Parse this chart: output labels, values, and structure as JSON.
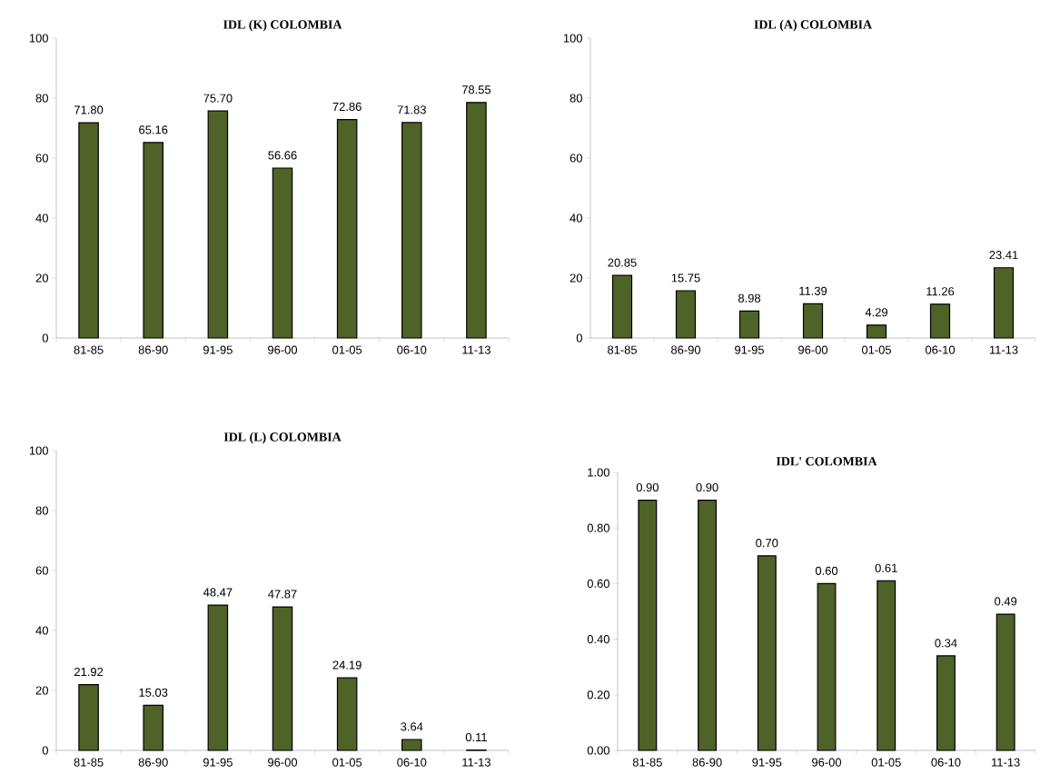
{
  "chart_data": [
    {
      "type": "bar",
      "title": "IDL (K) COLOMBIA",
      "categories": [
        "81-85",
        "86-90",
        "91-95",
        "96-00",
        "01-05",
        "06-10",
        "11-13"
      ],
      "values": [
        71.8,
        65.16,
        75.7,
        56.66,
        72.86,
        71.83,
        78.55
      ],
      "value_labels": [
        "71.80",
        "65.16",
        "75.70",
        "56.66",
        "72.86",
        "71.83",
        "78.55"
      ],
      "color": "#4f6228",
      "ylim": [
        0,
        100
      ],
      "yticks": [
        0,
        20,
        40,
        60,
        80,
        100
      ]
    },
    {
      "type": "bar",
      "title": "IDL (A) COLOMBIA",
      "categories": [
        "81-85",
        "86-90",
        "91-95",
        "96-00",
        "01-05",
        "06-10",
        "11-13"
      ],
      "values": [
        20.85,
        15.75,
        8.98,
        11.39,
        4.29,
        11.26,
        23.41
      ],
      "value_labels": [
        "20.85",
        "15.75",
        "8.98",
        "11.39",
        "4.29",
        "11.26",
        "23.41"
      ],
      "color": "#4f6228",
      "ylim": [
        0,
        100
      ],
      "yticks": [
        0,
        20,
        40,
        60,
        80,
        100
      ]
    },
    {
      "type": "bar",
      "title": "IDL (L) COLOMBIA",
      "categories": [
        "81-85",
        "86-90",
        "91-95",
        "96-00",
        "01-05",
        "06-10",
        "11-13"
      ],
      "values": [
        21.92,
        15.03,
        48.47,
        47.87,
        24.19,
        3.64,
        0.11
      ],
      "value_labels": [
        "21.92",
        "15.03",
        "48.47",
        "47.87",
        "24.19",
        "3.64",
        "0.11"
      ],
      "color": "#4f6228",
      "ylim": [
        0,
        100
      ],
      "yticks": [
        0,
        20,
        40,
        60,
        80,
        100
      ]
    },
    {
      "type": "bar",
      "title": "IDL' COLOMBIA",
      "categories": [
        "81-85",
        "86-90",
        "91-95",
        "96-00",
        "01-05",
        "06-10",
        "11-13"
      ],
      "values": [
        0.9,
        0.9,
        0.7,
        0.6,
        0.61,
        0.34,
        0.49
      ],
      "value_labels": [
        "0.90",
        "0.90",
        "0.70",
        "0.60",
        "0.61",
        "0.34",
        "0.49"
      ],
      "color": "#4f6228",
      "ylim": [
        0,
        1
      ],
      "yticks": [
        {
          "value": 0,
          "label": "0.00"
        },
        {
          "value": 0.2,
          "label": "0.20"
        },
        {
          "value": 0.4,
          "label": "0.40"
        },
        {
          "value": 0.6,
          "label": "0.60"
        },
        {
          "value": 0.8,
          "label": "0.80"
        },
        {
          "value": 1,
          "label": "1.00"
        }
      ]
    }
  ]
}
